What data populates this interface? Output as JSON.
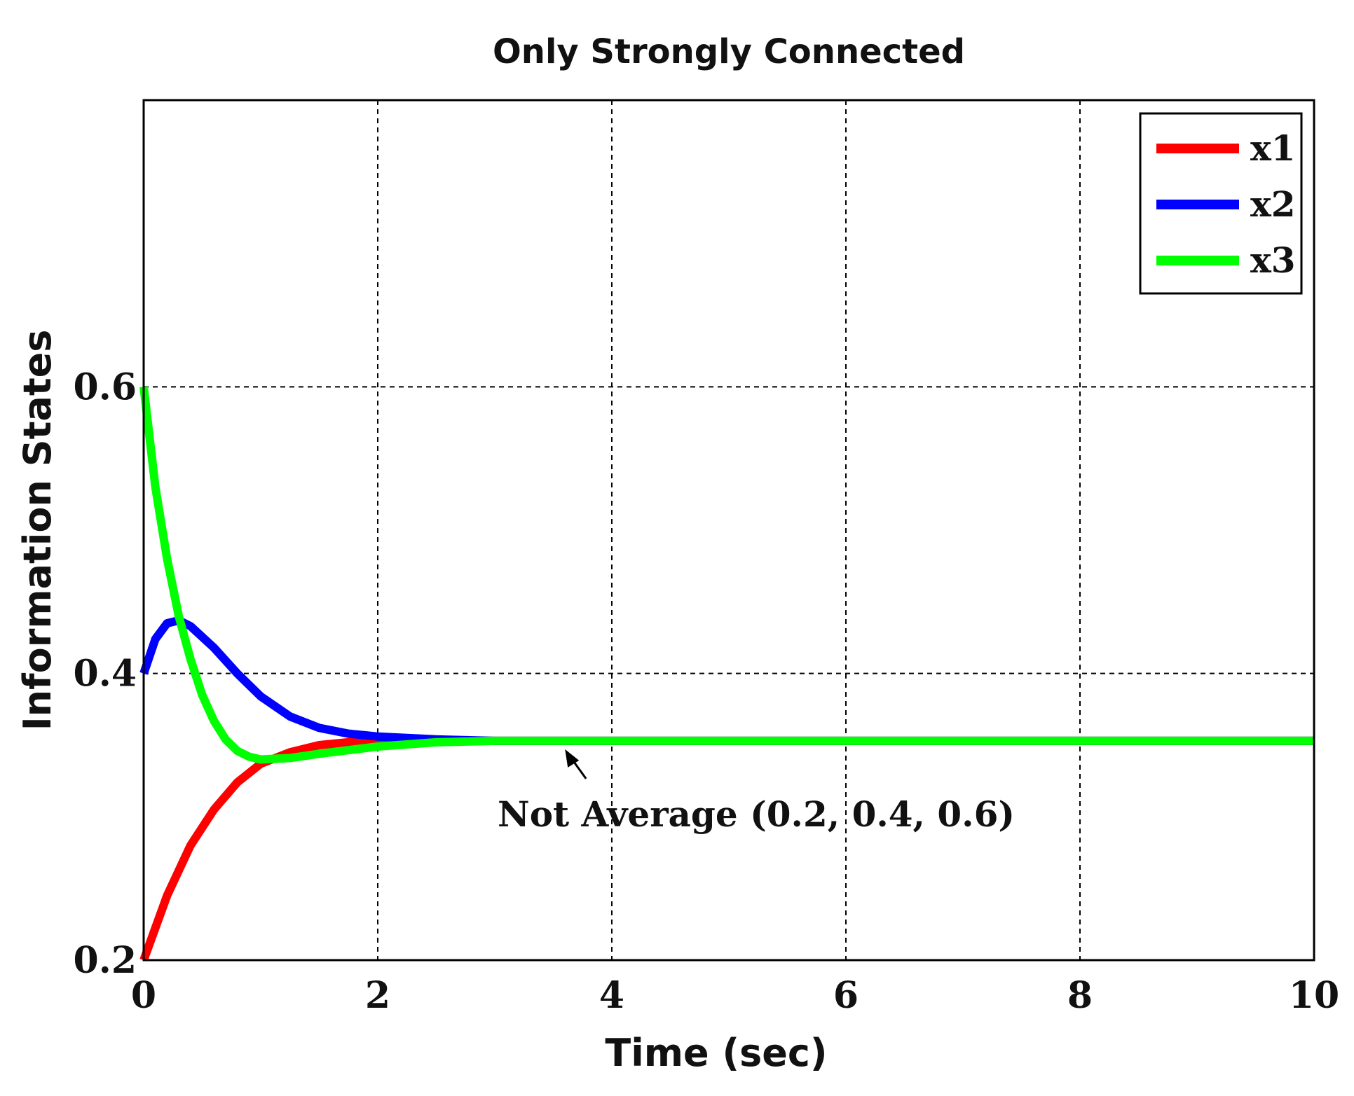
{
  "chart_data": {
    "type": "line",
    "title": "Only Strongly Connected",
    "xlabel": "Time (sec)",
    "ylabel": "Information States",
    "xlim": [
      0,
      10
    ],
    "ylim": [
      0.2,
      0.8
    ],
    "xticks": [
      0,
      2,
      4,
      6,
      8,
      10
    ],
    "xtick_labels": [
      "0",
      "2",
      "4",
      "6",
      "8",
      "10"
    ],
    "yticks": [
      0.2,
      0.4,
      0.6
    ],
    "ytick_labels": [
      "0.2",
      "0.4",
      "0.6"
    ],
    "grid": true,
    "legend_position": "top-right",
    "series": [
      {
        "name": "x1",
        "color": "#ff0000",
        "x": [
          0,
          0.2,
          0.4,
          0.6,
          0.8,
          1.0,
          1.25,
          1.5,
          1.75,
          2.0,
          2.5,
          3.0,
          4.0,
          5.0,
          6.0,
          7.0,
          8.0,
          9.0,
          10.0
        ],
        "y": [
          0.2,
          0.245,
          0.28,
          0.305,
          0.324,
          0.337,
          0.345,
          0.35,
          0.352,
          0.353,
          0.353,
          0.353,
          0.353,
          0.353,
          0.353,
          0.353,
          0.353,
          0.353,
          0.353
        ]
      },
      {
        "name": "x2",
        "color": "#0000ff",
        "x": [
          0,
          0.1,
          0.2,
          0.3,
          0.4,
          0.6,
          0.8,
          1.0,
          1.25,
          1.5,
          1.75,
          2.0,
          2.5,
          3.0,
          4.0,
          5.0,
          6.0,
          7.0,
          8.0,
          9.0,
          10.0
        ],
        "y": [
          0.4,
          0.424,
          0.435,
          0.437,
          0.433,
          0.418,
          0.4,
          0.384,
          0.37,
          0.362,
          0.358,
          0.356,
          0.354,
          0.353,
          0.353,
          0.353,
          0.353,
          0.353,
          0.353,
          0.353,
          0.353
        ]
      },
      {
        "name": "x3",
        "color": "#00ff00",
        "x": [
          0,
          0.1,
          0.2,
          0.3,
          0.4,
          0.5,
          0.6,
          0.7,
          0.8,
          0.9,
          1.0,
          1.25,
          1.5,
          2.0,
          2.5,
          3.0,
          4.0,
          5.0,
          6.0,
          7.0,
          8.0,
          9.0,
          10.0
        ],
        "y": [
          0.6,
          0.53,
          0.48,
          0.44,
          0.41,
          0.385,
          0.367,
          0.354,
          0.346,
          0.342,
          0.34,
          0.341,
          0.344,
          0.349,
          0.352,
          0.353,
          0.353,
          0.353,
          0.353,
          0.353,
          0.353,
          0.353,
          0.353
        ]
      }
    ],
    "annotations": [
      {
        "text": "Not Average (0.2, 0.4, 0.6)",
        "arrow_to": [
          3.6,
          0.353
        ]
      }
    ]
  }
}
